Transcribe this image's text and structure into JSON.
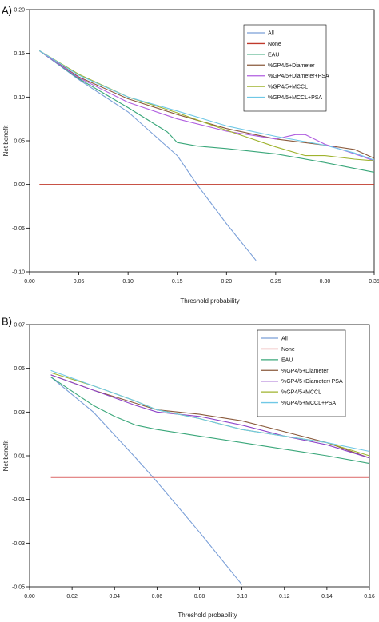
{
  "chart_data": [
    {
      "type": "line",
      "panel_label": "A)",
      "xlabel": "Threshold probability",
      "ylabel": "Net benefit",
      "xlim": [
        0.0,
        0.35
      ],
      "ylim": [
        -0.1,
        0.2
      ],
      "x_ticks": [
        "0.00",
        "0.05",
        "0.10",
        "0.15",
        "0.20",
        "0.25",
        "0.30",
        "0.35"
      ],
      "y_ticks": [
        "-0.10",
        "-0.05",
        "0.00",
        "0.05",
        "0.10",
        "0.15",
        "0.20"
      ],
      "legend_position": "top-right",
      "series": [
        {
          "name": "All",
          "color": "#7a9fd8",
          "points": [
            [
              0.01,
              0.153
            ],
            [
              0.05,
              0.12
            ],
            [
              0.1,
              0.083
            ],
            [
              0.15,
              0.033
            ],
            [
              0.17,
              0.0
            ],
            [
              0.2,
              -0.045
            ],
            [
              0.23,
              -0.087
            ]
          ]
        },
        {
          "name": "None",
          "color": "#c0392b",
          "points": [
            [
              0.01,
              0.0
            ],
            [
              0.35,
              0.0
            ]
          ]
        },
        {
          "name": "EAU",
          "color": "#3aa77a",
          "points": [
            [
              0.01,
              0.153
            ],
            [
              0.05,
              0.121
            ],
            [
              0.1,
              0.088
            ],
            [
              0.14,
              0.06
            ],
            [
              0.15,
              0.048
            ],
            [
              0.17,
              0.044
            ],
            [
              0.2,
              0.041
            ],
            [
              0.25,
              0.035
            ],
            [
              0.3,
              0.025
            ],
            [
              0.35,
              0.014
            ]
          ]
        },
        {
          "name": "%GP4/5+Diameter",
          "color": "#8a5a3c",
          "points": [
            [
              0.01,
              0.153
            ],
            [
              0.05,
              0.123
            ],
            [
              0.1,
              0.098
            ],
            [
              0.15,
              0.08
            ],
            [
              0.2,
              0.064
            ],
            [
              0.25,
              0.052
            ],
            [
              0.3,
              0.045
            ],
            [
              0.33,
              0.04
            ],
            [
              0.35,
              0.03
            ]
          ]
        },
        {
          "name": "%GP4/5+Diameter+PSA",
          "color": "#b05ee0",
          "points": [
            [
              0.01,
              0.153
            ],
            [
              0.05,
              0.122
            ],
            [
              0.1,
              0.094
            ],
            [
              0.15,
              0.075
            ],
            [
              0.2,
              0.061
            ],
            [
              0.25,
              0.052
            ],
            [
              0.27,
              0.057
            ],
            [
              0.28,
              0.057
            ],
            [
              0.3,
              0.046
            ],
            [
              0.33,
              0.035
            ],
            [
              0.35,
              0.027
            ]
          ]
        },
        {
          "name": "%GP4/5+MCCL",
          "color": "#9fb32e",
          "points": [
            [
              0.01,
              0.153
            ],
            [
              0.05,
              0.126
            ],
            [
              0.1,
              0.1
            ],
            [
              0.15,
              0.082
            ],
            [
              0.2,
              0.062
            ],
            [
              0.25,
              0.043
            ],
            [
              0.28,
              0.033
            ],
            [
              0.3,
              0.033
            ],
            [
              0.33,
              0.029
            ],
            [
              0.35,
              0.027
            ]
          ]
        },
        {
          "name": "%GP4/5+MCCL+PSA",
          "color": "#6fc8e6",
          "points": [
            [
              0.01,
              0.153
            ],
            [
              0.05,
              0.125
            ],
            [
              0.1,
              0.1
            ],
            [
              0.15,
              0.084
            ],
            [
              0.2,
              0.067
            ],
            [
              0.25,
              0.055
            ],
            [
              0.3,
              0.045
            ],
            [
              0.33,
              0.036
            ],
            [
              0.35,
              0.028
            ]
          ]
        }
      ]
    },
    {
      "type": "line",
      "panel_label": "B)",
      "xlabel": "Threshold probability",
      "ylabel": "Net benefit",
      "xlim": [
        0.0,
        0.16
      ],
      "ylim": [
        -0.05,
        0.07
      ],
      "x_ticks": [
        "0.00",
        "0.02",
        "0.04",
        "0.06",
        "0.08",
        "0.10",
        "0.12",
        "0.14",
        "0.16"
      ],
      "y_ticks": [
        "-0.05",
        "-0.03",
        "-0.01",
        "0.01",
        "0.03",
        "0.05",
        "0.07"
      ],
      "legend_position": "top-right",
      "series": [
        {
          "name": "All",
          "color": "#7a9fd8",
          "points": [
            [
              0.01,
              0.046
            ],
            [
              0.03,
              0.03
            ],
            [
              0.05,
              0.009
            ],
            [
              0.06,
              -0.002
            ],
            [
              0.08,
              -0.025
            ],
            [
              0.1,
              -0.049
            ]
          ]
        },
        {
          "name": "None",
          "color": "#e07a7a",
          "points": [
            [
              0.01,
              0.0
            ],
            [
              0.16,
              0.0
            ]
          ]
        },
        {
          "name": "EAU",
          "color": "#3aa77a",
          "points": [
            [
              0.01,
              0.046
            ],
            [
              0.03,
              0.033
            ],
            [
              0.04,
              0.028
            ],
            [
              0.05,
              0.024
            ],
            [
              0.06,
              0.022
            ],
            [
              0.08,
              0.019
            ],
            [
              0.1,
              0.016
            ],
            [
              0.12,
              0.013
            ],
            [
              0.14,
              0.01
            ],
            [
              0.16,
              0.0065
            ]
          ]
        },
        {
          "name": "%GP4/5+Diameter",
          "color": "#8a5a3c",
          "points": [
            [
              0.01,
              0.047
            ],
            [
              0.03,
              0.04
            ],
            [
              0.05,
              0.034
            ],
            [
              0.06,
              0.031
            ],
            [
              0.08,
              0.029
            ],
            [
              0.1,
              0.026
            ],
            [
              0.12,
              0.021
            ],
            [
              0.14,
              0.016
            ],
            [
              0.16,
              0.009
            ]
          ]
        },
        {
          "name": "%GP4/5+Diameter+PSA",
          "color": "#8e44c9",
          "points": [
            [
              0.01,
              0.047
            ],
            [
              0.03,
              0.04
            ],
            [
              0.05,
              0.033
            ],
            [
              0.06,
              0.03
            ],
            [
              0.08,
              0.028
            ],
            [
              0.1,
              0.024
            ],
            [
              0.12,
              0.019
            ],
            [
              0.14,
              0.015
            ],
            [
              0.16,
              0.009
            ]
          ]
        },
        {
          "name": "%GP4/5+MCCL",
          "color": "#9fb32e",
          "points": [
            [
              0.01,
              0.048
            ],
            [
              0.03,
              0.042
            ],
            [
              0.05,
              0.035
            ],
            [
              0.06,
              0.031
            ],
            [
              0.08,
              0.027
            ],
            [
              0.1,
              0.022
            ],
            [
              0.12,
              0.019
            ],
            [
              0.14,
              0.016
            ],
            [
              0.16,
              0.01
            ]
          ]
        },
        {
          "name": "%GP4/5+MCCL+PSA",
          "color": "#6fc8e6",
          "points": [
            [
              0.01,
              0.049
            ],
            [
              0.03,
              0.042
            ],
            [
              0.05,
              0.035
            ],
            [
              0.06,
              0.031
            ],
            [
              0.08,
              0.027
            ],
            [
              0.1,
              0.022
            ],
            [
              0.12,
              0.019
            ],
            [
              0.14,
              0.016
            ],
            [
              0.16,
              0.012
            ]
          ]
        }
      ]
    }
  ]
}
